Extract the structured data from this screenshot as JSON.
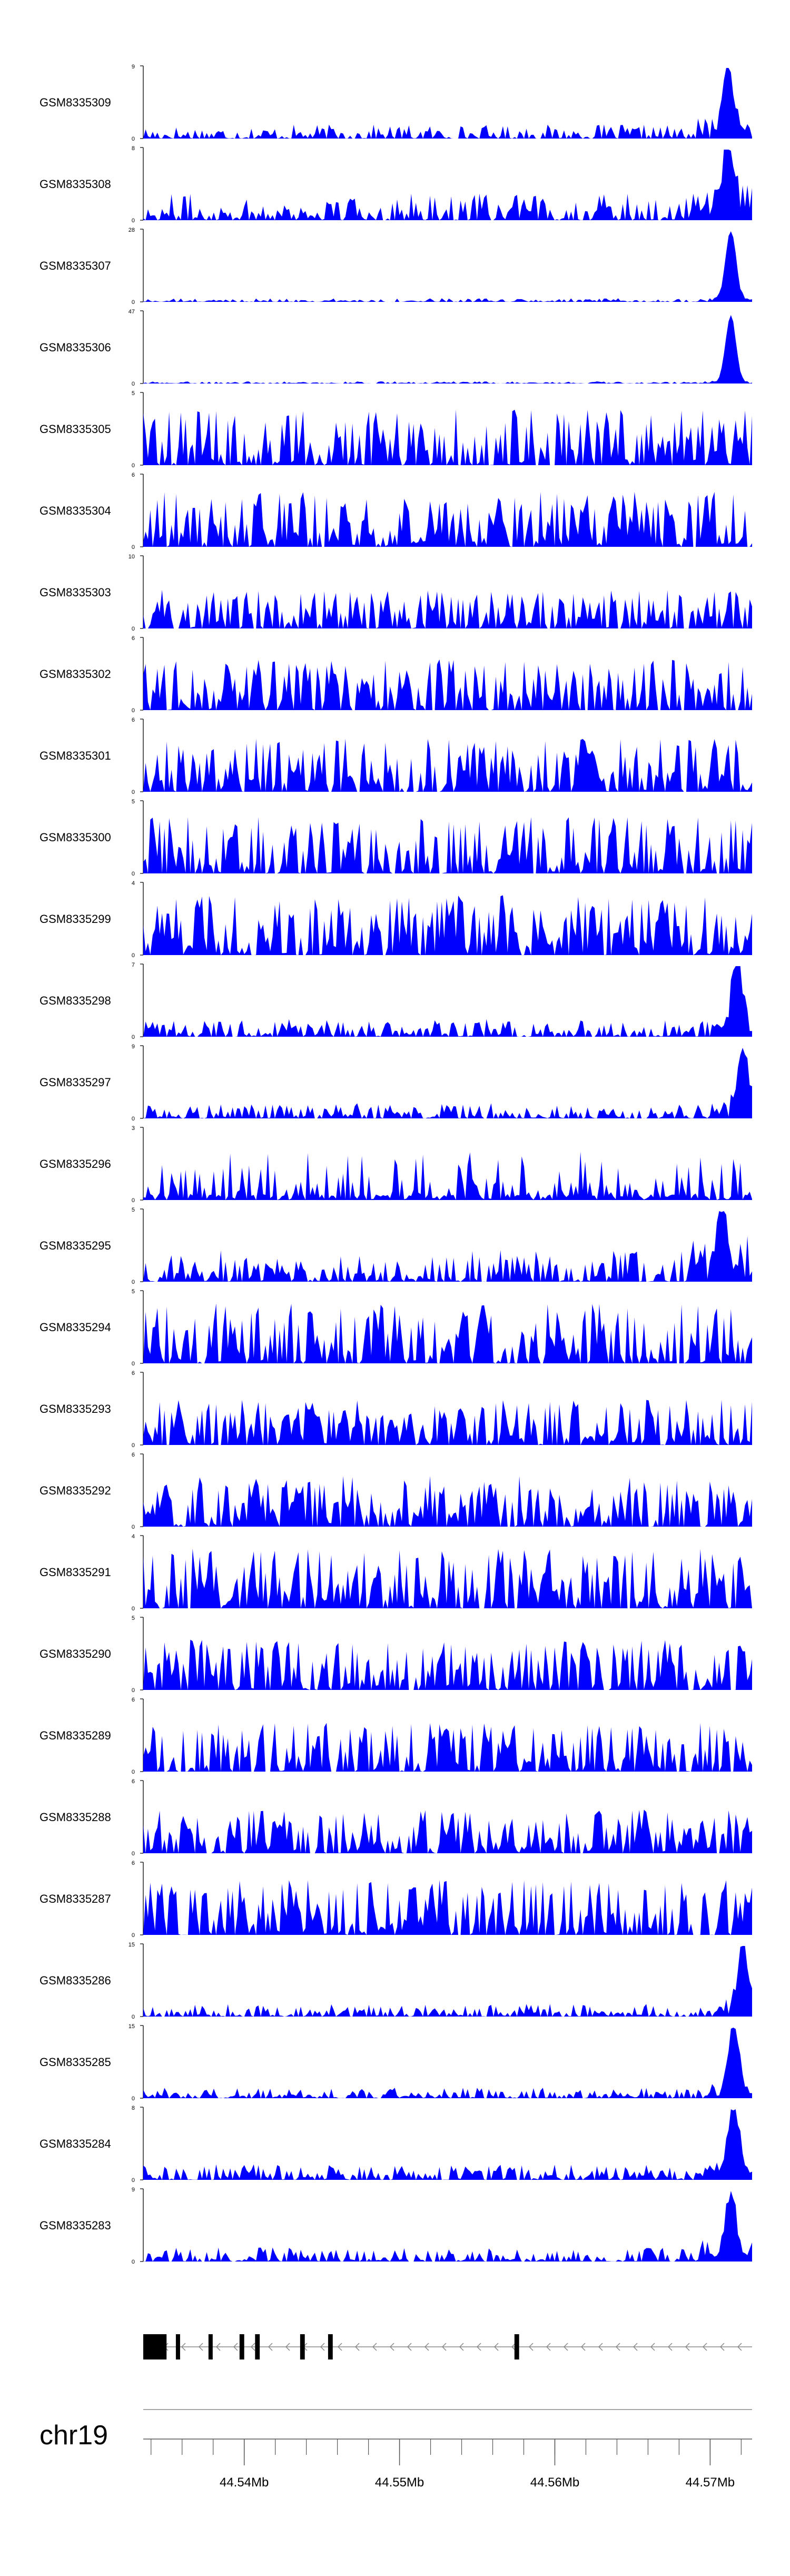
{
  "chart_data": {
    "type": "area",
    "fill_color": "#0000FF",
    "axis_color": "#000000",
    "chromosome": "chr19",
    "x_range_mb": [
      44.5335,
      44.5727
    ],
    "x_ticks": [
      {
        "value": 44.54,
        "label": "44.54Mb"
      },
      {
        "value": 44.55,
        "label": "44.55Mb"
      },
      {
        "value": 44.56,
        "label": "44.56Mb"
      },
      {
        "value": 44.57,
        "label": "44.57Mb"
      }
    ],
    "tracks": [
      {
        "name": "GSM8335309",
        "ymax": 9,
        "ymax_label": "9",
        "profile": "peak",
        "base": 0.2,
        "peak_x": 0.96,
        "peak_h": 1.0
      },
      {
        "name": "GSM8335308",
        "ymax": 8,
        "ymax_label": "8",
        "profile": "peak",
        "base": 0.38,
        "peak_x": 0.96,
        "peak_h": 0.98
      },
      {
        "name": "GSM8335307",
        "ymax": 28,
        "ymax_label": "28",
        "profile": "peak",
        "base": 0.05,
        "peak_x": 0.965,
        "peak_h": 1.0
      },
      {
        "name": "GSM8335306",
        "ymax": 47,
        "ymax_label": "47",
        "profile": "peak",
        "base": 0.03,
        "peak_x": 0.965,
        "peak_h": 0.95
      },
      {
        "name": "GSM8335305",
        "ymax": 5,
        "ymax_label": "5",
        "profile": "dense",
        "base": 0.8
      },
      {
        "name": "GSM8335304",
        "ymax": 6,
        "ymax_label": "6",
        "profile": "dense",
        "base": 0.78
      },
      {
        "name": "GSM8335303",
        "ymax": 10,
        "ymax_label": "10",
        "profile": "dense",
        "base": 0.55
      },
      {
        "name": "GSM8335302",
        "ymax": 6,
        "ymax_label": "6",
        "profile": "dense",
        "base": 0.72
      },
      {
        "name": "GSM8335301",
        "ymax": 6,
        "ymax_label": "6",
        "profile": "dense",
        "base": 0.75
      },
      {
        "name": "GSM8335300",
        "ymax": 5,
        "ymax_label": "5",
        "profile": "dense",
        "base": 0.8
      },
      {
        "name": "GSM8335299",
        "ymax": 4,
        "ymax_label": "4",
        "profile": "dense",
        "base": 0.85
      },
      {
        "name": "GSM8335298",
        "ymax": 7,
        "ymax_label": "7",
        "profile": "peak",
        "base": 0.25,
        "peak_x": 0.975,
        "peak_h": 0.95
      },
      {
        "name": "GSM8335297",
        "ymax": 9,
        "ymax_label": "9",
        "profile": "peak",
        "base": 0.22,
        "peak_x": 0.985,
        "peak_h": 0.95
      },
      {
        "name": "GSM8335296",
        "ymax": 3,
        "ymax_label": "3",
        "profile": "sparse",
        "base": 0.7
      },
      {
        "name": "GSM8335295",
        "ymax": 5,
        "ymax_label": "5",
        "profile": "peak",
        "base": 0.45,
        "peak_x": 0.95,
        "peak_h": 0.85
      },
      {
        "name": "GSM8335294",
        "ymax": 5,
        "ymax_label": "5",
        "profile": "dense",
        "base": 0.85
      },
      {
        "name": "GSM8335293",
        "ymax": 6,
        "ymax_label": "6",
        "profile": "dense",
        "base": 0.65
      },
      {
        "name": "GSM8335292",
        "ymax": 6,
        "ymax_label": "6",
        "profile": "dense",
        "base": 0.72
      },
      {
        "name": "GSM8335291",
        "ymax": 4,
        "ymax_label": "4",
        "profile": "dense",
        "base": 0.85
      },
      {
        "name": "GSM8335290",
        "ymax": 5,
        "ymax_label": "5",
        "profile": "dense",
        "base": 0.72
      },
      {
        "name": "GSM8335289",
        "ymax": 6,
        "ymax_label": "6",
        "profile": "dense",
        "base": 0.7
      },
      {
        "name": "GSM8335288",
        "ymax": 6,
        "ymax_label": "6",
        "profile": "dense",
        "base": 0.62
      },
      {
        "name": "GSM8335287",
        "ymax": 6,
        "ymax_label": "6",
        "profile": "dense",
        "base": 0.78
      },
      {
        "name": "GSM8335286",
        "ymax": 15,
        "ymax_label": "15",
        "profile": "peak",
        "base": 0.18,
        "peak_x": 0.985,
        "peak_h": 0.95
      },
      {
        "name": "GSM8335285",
        "ymax": 15,
        "ymax_label": "15",
        "profile": "peak",
        "base": 0.15,
        "peak_x": 0.97,
        "peak_h": 1.0
      },
      {
        "name": "GSM8335284",
        "ymax": 8,
        "ymax_label": "8",
        "profile": "peak",
        "base": 0.22,
        "peak_x": 0.97,
        "peak_h": 0.95
      },
      {
        "name": "GSM8335283",
        "ymax": 9,
        "ymax_label": "9",
        "profile": "peak",
        "base": 0.2,
        "peak_x": 0.965,
        "peak_h": 0.9
      }
    ],
    "y_min_label": "0",
    "gene_model": {
      "strand": "-",
      "start_mb": 44.5335,
      "end_mb": 44.5727,
      "exons_mb": [
        [
          44.5335,
          44.535
        ],
        [
          44.5356,
          44.5358
        ],
        [
          44.5377,
          44.5379
        ],
        [
          44.5397,
          44.54
        ],
        [
          44.5407,
          44.541
        ],
        [
          44.5436,
          44.5439
        ],
        [
          44.5454,
          44.5457
        ],
        [
          44.5574,
          44.5577
        ]
      ]
    }
  }
}
